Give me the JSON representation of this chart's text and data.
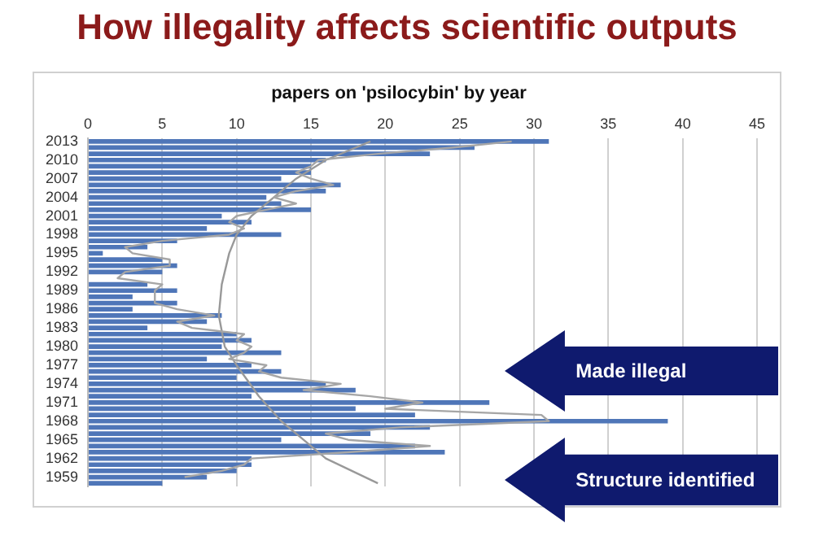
{
  "chart_data": {
    "type": "bar",
    "orientation": "horizontal",
    "title": "How illegality affects scientific outputs",
    "subtitle": "papers on 'psilocybin' by year",
    "categories": [
      "2013",
      null,
      null,
      "2010",
      null,
      null,
      "2007",
      null,
      null,
      "2004",
      null,
      null,
      "2001",
      null,
      null,
      "1998",
      null,
      null,
      "1995",
      null,
      null,
      "1992",
      null,
      null,
      "1989",
      null,
      null,
      "1986",
      null,
      null,
      "1983",
      null,
      null,
      "1980",
      null,
      null,
      "1977",
      null,
      null,
      "1974",
      null,
      null,
      "1971",
      null,
      null,
      "1968",
      null,
      null,
      "1965",
      null,
      null,
      "1962",
      null,
      null,
      "1959",
      null
    ],
    "xlim": [
      0,
      45
    ],
    "xticks": [
      0,
      5,
      10,
      15,
      20,
      25,
      30,
      35,
      40,
      45
    ],
    "grid": "x",
    "legend": false,
    "marker": "none",
    "series": [
      {
        "color": "#4f76b8",
        "values": [
          31,
          26,
          23,
          16,
          15,
          15,
          13,
          17,
          16,
          12,
          13,
          15,
          9,
          11,
          8,
          13,
          6,
          4,
          1,
          5,
          6,
          5,
          0,
          4,
          6,
          3,
          6,
          3,
          9,
          8,
          4,
          10,
          11,
          9,
          13,
          8,
          11,
          13,
          10,
          16,
          18,
          11,
          27,
          18,
          22,
          39,
          23,
          19,
          13,
          22,
          24,
          11,
          11,
          10,
          8,
          5
        ]
      },
      {
        "type": "line",
        "color": "#a6a6a6",
        "values": [
          28.5,
          24.5,
          19.5,
          15.5,
          15,
          14,
          15,
          16.5,
          14,
          12.5,
          14,
          12,
          10,
          9.5,
          10.5,
          9.5,
          5,
          2.5,
          3,
          5.5,
          5.5,
          2.5,
          2,
          5,
          4.5,
          4.5,
          4.5,
          6,
          8.5,
          6,
          7,
          10.5,
          10,
          11,
          10.5,
          9.5,
          12,
          11.5,
          13,
          17,
          14.5,
          19,
          22.5,
          20,
          30.5,
          31,
          21,
          16,
          17.5,
          23,
          17.5,
          11,
          10.5,
          9,
          6.5,
          null
        ]
      },
      {
        "type": "line",
        "color": "#999999",
        "values": [
          19,
          null,
          null,
          16,
          null,
          null,
          14,
          null,
          null,
          12.5,
          null,
          null,
          11,
          null,
          null,
          10,
          null,
          null,
          9.5,
          null,
          null,
          null,
          null,
          9,
          null,
          null,
          null,
          null,
          8.8,
          null,
          null,
          null,
          null,
          9.2,
          null,
          null,
          10,
          null,
          null,
          null,
          null,
          11.5,
          null,
          null,
          null,
          13,
          null,
          null,
          14.5,
          null,
          null,
          16,
          null,
          null,
          null,
          19.5
        ]
      }
    ],
    "annotations": [
      "Made illegal",
      "Structure identified"
    ]
  }
}
